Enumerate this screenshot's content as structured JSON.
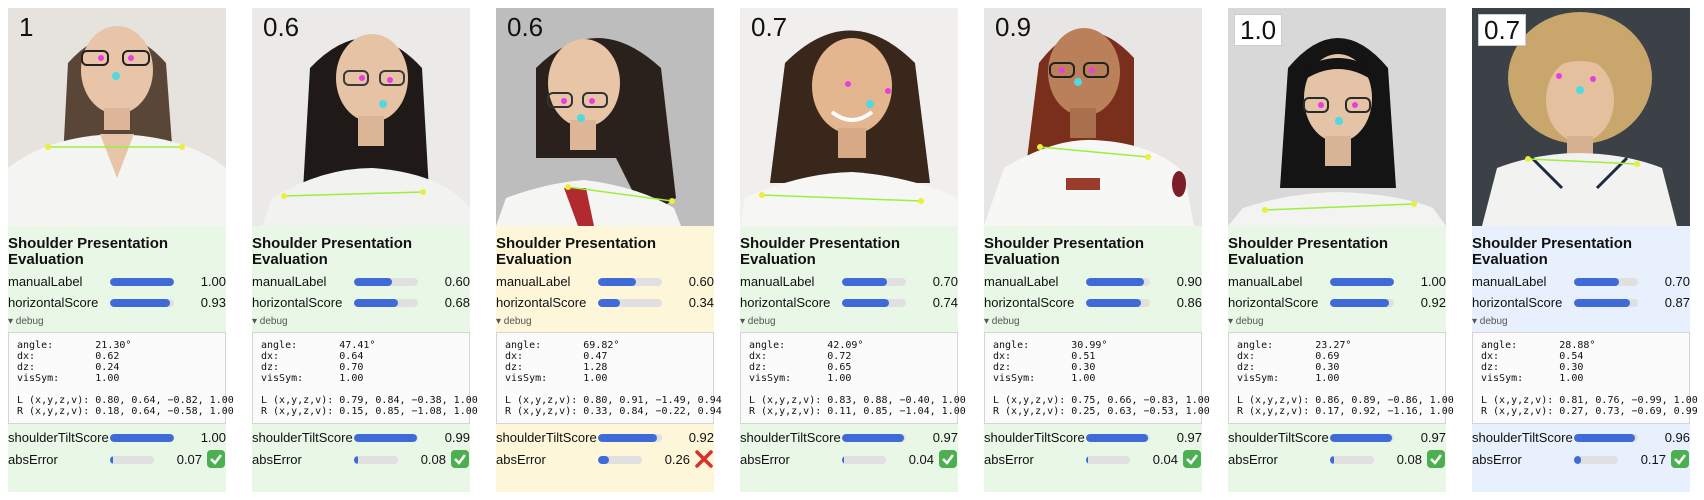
{
  "section_title": "Shoulder Presentation Evaluation",
  "metric_labels": {
    "manual": "manualLabel",
    "horizontal": "horizontalScore",
    "tilt": "shoulderTiltScore",
    "abs": "absError"
  },
  "debug_label": "▾ debug",
  "debug_keys": {
    "angle": "angle:",
    "dx": "dx:",
    "dz": "dz:",
    "vis": "visSym:",
    "L": "L (x,y,z,v):",
    "R": "R (x,y,z,v):"
  },
  "cards": [
    {
      "label": "1",
      "manual": "1.00",
      "manual_v": 1.0,
      "horizontal": "0.93",
      "horizontal_v": 0.93,
      "angle": "21.30°",
      "dx": "0.62",
      "dz": "0.24",
      "vis": "1.00",
      "L": "0.80, 0.64, −0.82, 1.00",
      "R": "0.18, 0.64, −0.58, 1.00",
      "tilt": "1.00",
      "tilt_v": 1.0,
      "abs": "0.07",
      "abs_v": 0.07,
      "ok": true,
      "bg": "green"
    },
    {
      "label": "0.6",
      "manual": "0.60",
      "manual_v": 0.6,
      "horizontal": "0.68",
      "horizontal_v": 0.68,
      "angle": "47.41°",
      "dx": "0.64",
      "dz": "0.70",
      "vis": "1.00",
      "L": "0.79, 0.84, −0.38, 1.00",
      "R": "0.15, 0.85, −1.08, 1.00",
      "tilt": "0.99",
      "tilt_v": 0.99,
      "abs": "0.08",
      "abs_v": 0.08,
      "ok": true,
      "bg": "green"
    },
    {
      "label": "0.6",
      "manual": "0.60",
      "manual_v": 0.6,
      "horizontal": "0.34",
      "horizontal_v": 0.34,
      "angle": "69.82°",
      "dx": "0.47",
      "dz": "1.28",
      "vis": "1.00",
      "L": "0.80, 0.91, −1.49, 0.94",
      "R": "0.33, 0.84, −0.22, 0.94",
      "tilt": "0.92",
      "tilt_v": 0.92,
      "abs": "0.26",
      "abs_v": 0.26,
      "ok": false,
      "bg": "yellow"
    },
    {
      "label": "0.7",
      "manual": "0.70",
      "manual_v": 0.7,
      "horizontal": "0.74",
      "horizontal_v": 0.74,
      "angle": "42.09°",
      "dx": "0.72",
      "dz": "0.65",
      "vis": "1.00",
      "L": "0.83, 0.88, −0.40, 1.00",
      "R": "0.11, 0.85, −1.04, 1.00",
      "tilt": "0.97",
      "tilt_v": 0.97,
      "abs": "0.04",
      "abs_v": 0.04,
      "ok": true,
      "bg": "green"
    },
    {
      "label": "0.9",
      "manual": "0.90",
      "manual_v": 0.9,
      "horizontal": "0.86",
      "horizontal_v": 0.86,
      "angle": "30.99°",
      "dx": "0.51",
      "dz": "0.30",
      "vis": "1.00",
      "L": "0.75, 0.66, −0.83, 1.00",
      "R": "0.25, 0.63, −0.53, 1.00",
      "tilt": "0.97",
      "tilt_v": 0.97,
      "abs": "0.04",
      "abs_v": 0.04,
      "ok": true,
      "bg": "green"
    },
    {
      "label": "1.0",
      "manual": "1.00",
      "manual_v": 1.0,
      "horizontal": "0.92",
      "horizontal_v": 0.92,
      "angle": "23.27°",
      "dx": "0.69",
      "dz": "0.30",
      "vis": "1.00",
      "L": "0.86, 0.89, −0.86, 1.00",
      "R": "0.17, 0.92, −1.16, 1.00",
      "tilt": "0.97",
      "tilt_v": 0.97,
      "abs": "0.08",
      "abs_v": 0.08,
      "ok": true,
      "bg": "green"
    },
    {
      "label": "0.7",
      "manual": "0.70",
      "manual_v": 0.7,
      "horizontal": "0.87",
      "horizontal_v": 0.87,
      "angle": "28.88°",
      "dx": "0.54",
      "dz": "0.30",
      "vis": "1.00",
      "L": "0.81, 0.76, −0.99, 1.00",
      "R": "0.27, 0.73, −0.69, 0.99",
      "tilt": "0.96",
      "tilt_v": 0.96,
      "abs": "0.17",
      "abs_v": 0.17,
      "ok": true,
      "bg": "blue"
    }
  ]
}
